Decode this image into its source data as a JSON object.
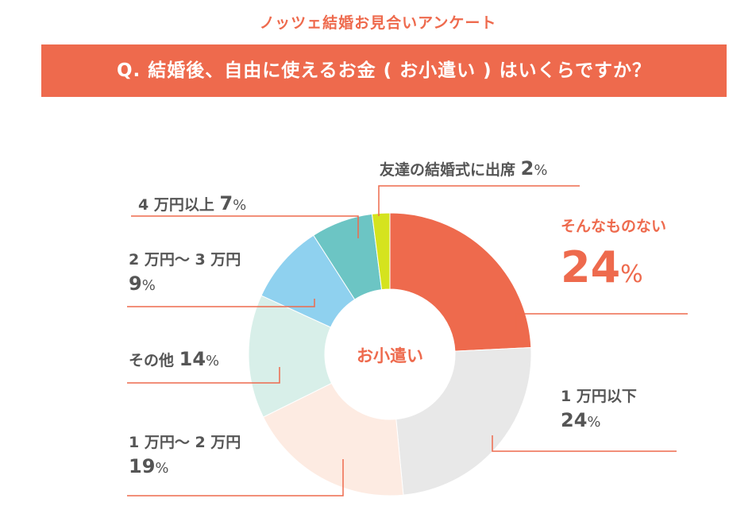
{
  "header": {
    "subtitle": "ノッツェ結婚お見合いアンケート",
    "question": "Q. 結婚後、自由に使えるお金 ( お小遣い ) はいくらですか？"
  },
  "chart_data": {
    "type": "pie",
    "center_label": "お小遣い",
    "unit": "%",
    "slices": [
      {
        "label": "そんなものない",
        "value": 24,
        "color": "#ee6a4d",
        "highlight": true
      },
      {
        "label": "1 万円以下",
        "value": 24,
        "color": "#e8e8e8"
      },
      {
        "label": "1 万円〜 2 万円",
        "value": 19,
        "color": "#fdebe2"
      },
      {
        "label": "その他",
        "value": 14,
        "color": "#d8efe9"
      },
      {
        "label": "2 万円〜 3 万円",
        "value": 9,
        "color": "#8fd1ef"
      },
      {
        "label": "4 万円以上",
        "value": 7,
        "color": "#6cc5c4"
      },
      {
        "label": "友達の結婚式に出席",
        "value": 2,
        "color": "#d5e31e"
      }
    ]
  }
}
